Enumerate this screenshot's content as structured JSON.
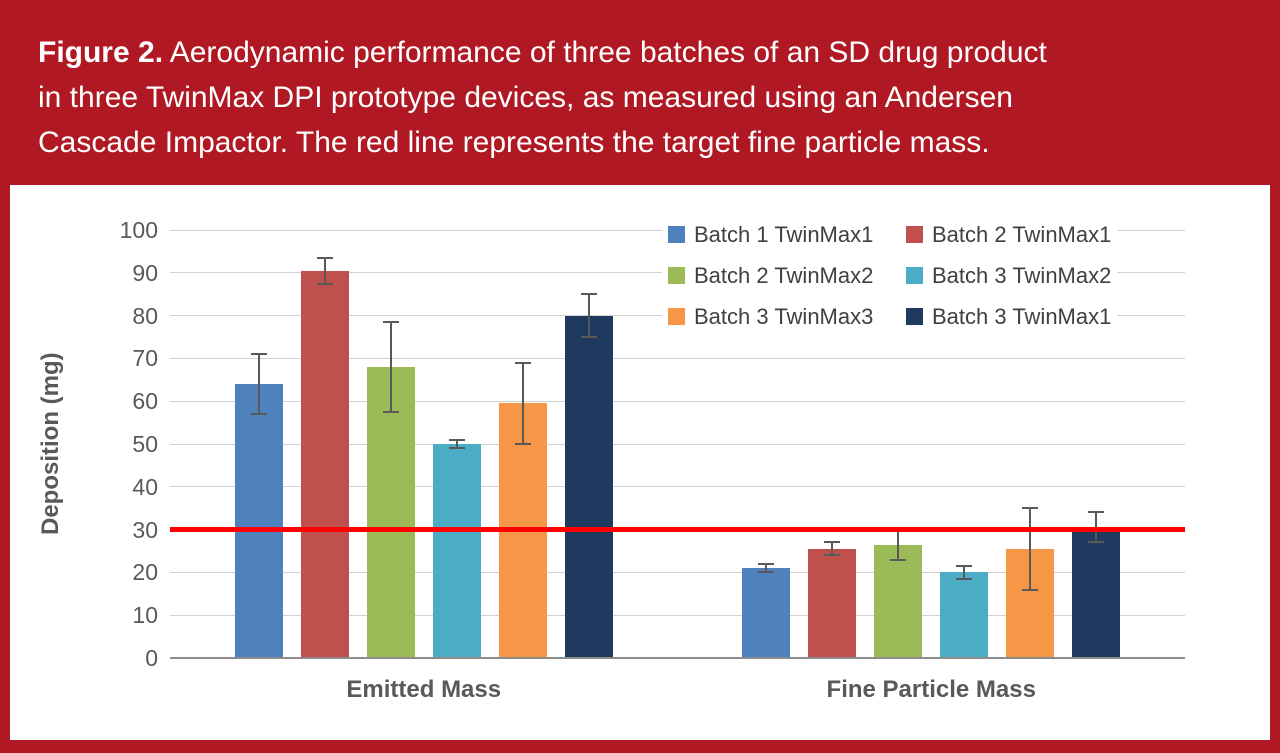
{
  "figure": {
    "label": "Figure 2.",
    "caption": " Aerodynamic performance of three batches of an SD drug product in three TwinMax DPI prototype devices, as measured using an Andersen Cascade Impactor. The red line represents the target fine particle mass."
  },
  "colors": {
    "banner": "#B01823",
    "target_line": "#FF0000",
    "axis_text": "#595959",
    "gridline": "#D2D2D2",
    "error_bar": "#595959"
  },
  "chart_data": {
    "type": "bar",
    "title": "",
    "xlabel": "",
    "ylabel": "Deposition (mg)",
    "ylim": [
      0,
      100
    ],
    "ytick_step": 10,
    "yticks": [
      0,
      10,
      20,
      30,
      40,
      50,
      60,
      70,
      80,
      90,
      100
    ],
    "grid": true,
    "legend_position": "top-right-inside",
    "legend_columns": 2,
    "categories": [
      "Emitted Mass",
      "Fine Particle Mass"
    ],
    "target_line": {
      "value": 30,
      "color": "#FF0000",
      "label": "target fine particle mass"
    },
    "series": [
      {
        "name": "Batch 1 TwinMax1",
        "color": "#4F81BD",
        "values": [
          64,
          21
        ],
        "errors": [
          7,
          1
        ]
      },
      {
        "name": "Batch 2 TwinMax1",
        "color": "#C0504D",
        "values": [
          90.5,
          25.5
        ],
        "errors": [
          3,
          1.5
        ]
      },
      {
        "name": "Batch 2 TwinMax2",
        "color": "#9BBB59",
        "values": [
          68,
          26.5
        ],
        "errors": [
          10.5,
          3.5
        ]
      },
      {
        "name": "Batch 3 TwinMax2",
        "color": "#4BACC6",
        "values": [
          50,
          20
        ],
        "errors": [
          1,
          1.5
        ]
      },
      {
        "name": "Batch 3 TwinMax3",
        "color": "#F79646",
        "values": [
          59.5,
          25.5
        ],
        "errors": [
          9.5,
          9.5
        ]
      },
      {
        "name": "Batch 3 TwinMax1",
        "color": "#1E3A5F",
        "values": [
          80,
          30.5
        ],
        "errors": [
          5,
          3.5
        ]
      }
    ]
  }
}
